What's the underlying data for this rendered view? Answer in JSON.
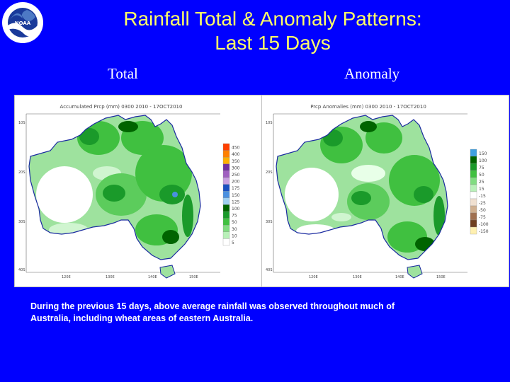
{
  "slide": {
    "title_line1": "Rainfall Total & Anomaly Patterns:",
    "title_line2": "Last 15 Days",
    "label_total": "Total",
    "label_anomaly": "Anomaly",
    "caption_line1": "During the previous 15 days, above average rainfall was observed throughout much of",
    "caption_line2": "Australia, including wheat areas of eastern Australia.",
    "logo_text": "NOAA"
  },
  "colors": {
    "background": "#0000ff",
    "title": "#ffff66",
    "text": "#ffffff"
  },
  "maps": {
    "total": {
      "title": "Accumulated Prcp (mm) 0300 2010 - 17OCT2010",
      "lat_labels": [
        "10S",
        "20S",
        "30S",
        "40S"
      ],
      "lon_labels": [
        "120E",
        "130E",
        "140E",
        "150E"
      ],
      "legend": [
        {
          "label": "450",
          "color": "#ff4000"
        },
        {
          "label": "400",
          "color": "#ff8000"
        },
        {
          "label": "350",
          "color": "#ffb000"
        },
        {
          "label": "300",
          "color": "#7030a0"
        },
        {
          "label": "250",
          "color": "#a060c0"
        },
        {
          "label": "200",
          "color": "#c8a0e0"
        },
        {
          "label": "175",
          "color": "#1a50c0"
        },
        {
          "label": "150",
          "color": "#4a90e0"
        },
        {
          "label": "125",
          "color": "#a0d0f0"
        },
        {
          "label": "100",
          "color": "#006400"
        },
        {
          "label": "75",
          "color": "#1a9a2a"
        },
        {
          "label": "50",
          "color": "#40c040"
        },
        {
          "label": "30",
          "color": "#80dc80"
        },
        {
          "label": "10",
          "color": "#b8f0b8"
        },
        {
          "label": "5",
          "color": "#ffffff"
        }
      ]
    },
    "anomaly": {
      "title": "Prcp Anomalies (mm) 0300 2010 - 17OCT2010",
      "lat_labels": [
        "10S",
        "20S",
        "30S",
        "40S"
      ],
      "lon_labels": [
        "120E",
        "130E",
        "140E",
        "150E"
      ],
      "legend": [
        {
          "label": "150",
          "color": "#40a0e0"
        },
        {
          "label": "100",
          "color": "#006400"
        },
        {
          "label": "75",
          "color": "#1a9a2a"
        },
        {
          "label": "50",
          "color": "#40c040"
        },
        {
          "label": "25",
          "color": "#80dc80"
        },
        {
          "label": "15",
          "color": "#b8f0b8"
        },
        {
          "label": "-15",
          "color": "#ffffff"
        },
        {
          "label": "-25",
          "color": "#f0e0d0"
        },
        {
          "label": "-50",
          "color": "#d0b090"
        },
        {
          "label": "-75",
          "color": "#a07050"
        },
        {
          "label": "-100",
          "color": "#704020"
        },
        {
          "label": "-150",
          "color": "#fff0b0"
        }
      ]
    }
  }
}
